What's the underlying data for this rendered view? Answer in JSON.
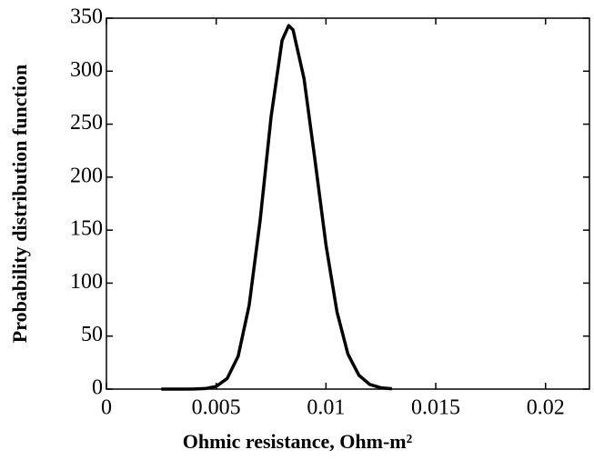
{
  "chart_data": {
    "type": "line",
    "xlabel": "Ohmic resistance, Ohm-m²",
    "ylabel": "Probability distribution function",
    "x": [
      0.0025,
      0.003,
      0.0035,
      0.004,
      0.0045,
      0.005,
      0.0055,
      0.006,
      0.0065,
      0.007,
      0.0075,
      0.008,
      0.0083,
      0.0085,
      0.009,
      0.0095,
      0.01,
      0.0105,
      0.011,
      0.0115,
      0.012,
      0.0125,
      0.013
    ],
    "series": [
      {
        "color": "#000000",
        "values": [
          0,
          0,
          0,
          0.1,
          0.5,
          2.5,
          10,
          31,
          79,
          159,
          257,
          329,
          343,
          339,
          293,
          216,
          136,
          73,
          33,
          13,
          4.3,
          1.2,
          0.3
        ]
      }
    ],
    "xlim": [
      0,
      0.022
    ],
    "xticks": [
      0,
      0.005,
      0.01,
      0.015,
      0.02
    ],
    "ylim": [
      0,
      350
    ],
    "yticks": [
      0,
      50,
      100,
      150,
      200,
      250,
      300,
      350
    ],
    "grid": false
  }
}
